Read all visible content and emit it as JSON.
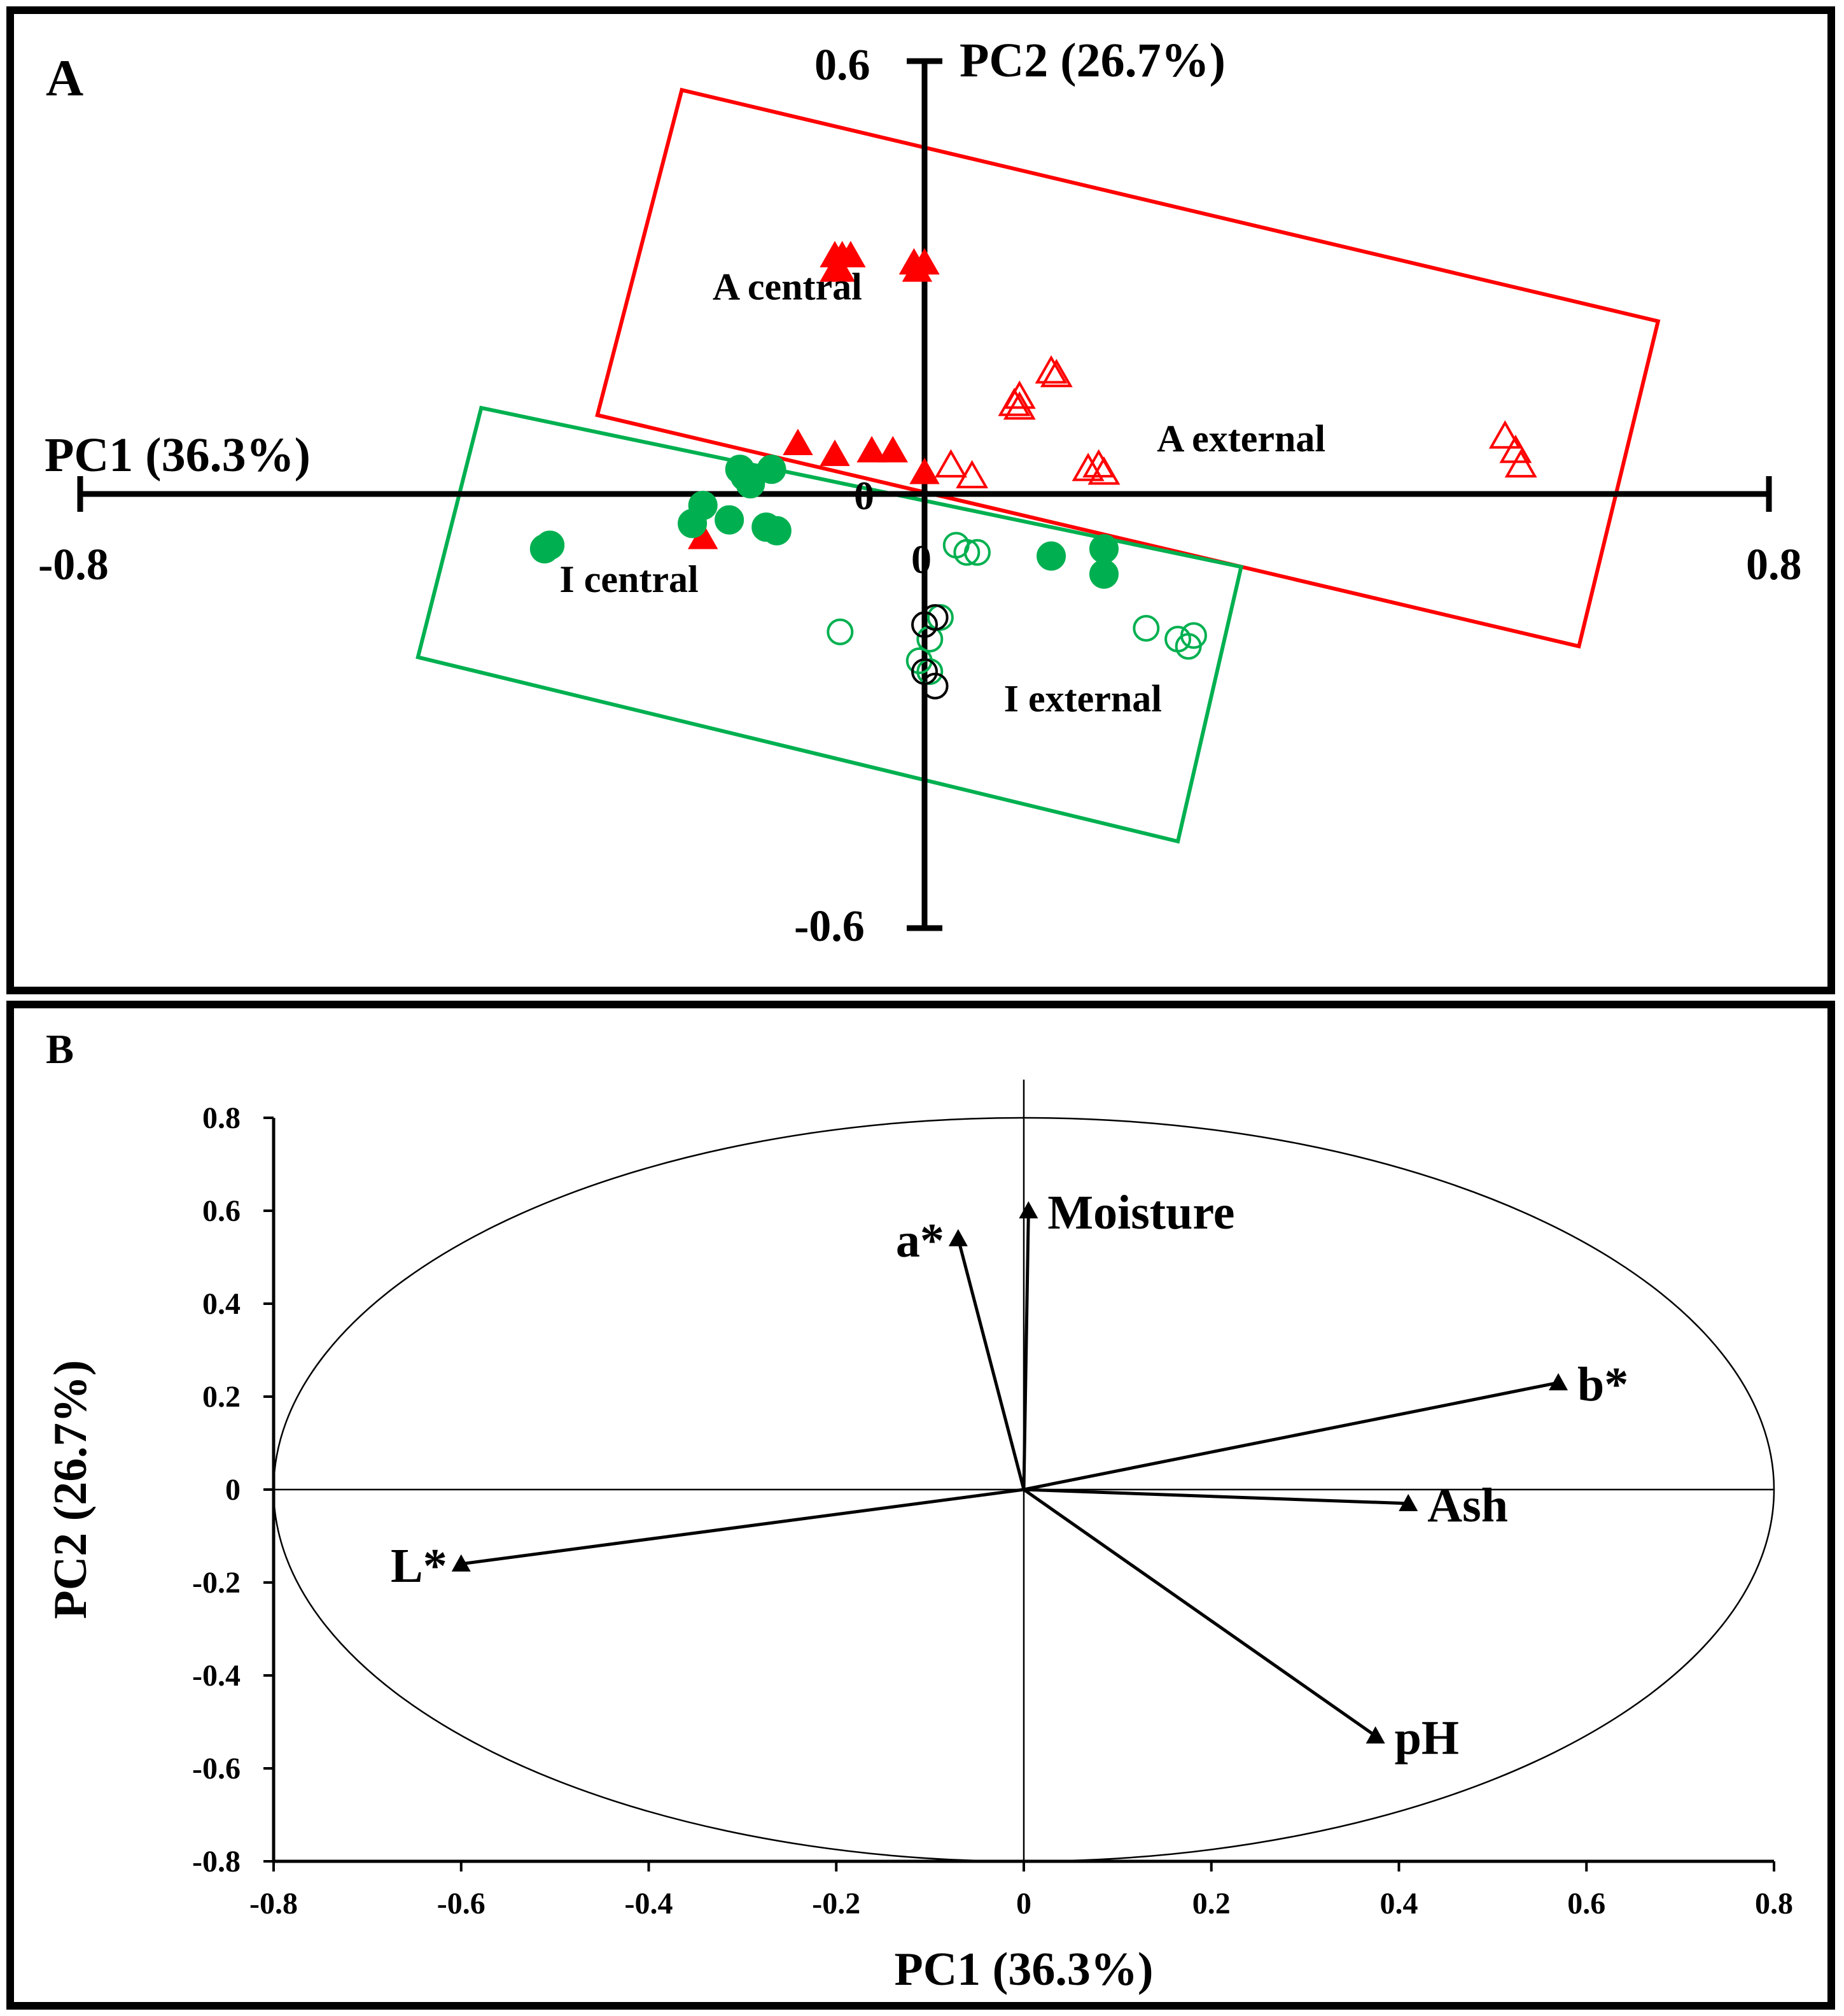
{
  "chart_data": [
    {
      "type": "scatter",
      "panel_label": "A",
      "xlabel": "PC1 (36.3%)",
      "ylabel": "PC2 (26.7%)",
      "xlim": [
        -0.8,
        0.8
      ],
      "ylim": [
        -0.6,
        0.6
      ],
      "x_tick_labels": [
        "-0.8",
        "0",
        "0.8"
      ],
      "y_tick_labels": [
        "0.6",
        "0",
        "-0.6"
      ],
      "series": [
        {
          "name": "A central",
          "marker": "triangle-filled",
          "color": "#ff0000",
          "points": [
            [
              -0.085,
              0.33
            ],
            [
              -0.078,
              0.33
            ],
            [
              -0.07,
              0.33
            ],
            [
              -0.085,
              0.31
            ],
            [
              -0.08,
              0.31
            ],
            [
              -0.01,
              0.32
            ],
            [
              0,
              0.32
            ],
            [
              -0.007,
              0.31
            ],
            [
              -0.12,
              0.07
            ],
            [
              -0.085,
              0.055
            ],
            [
              -0.05,
              0.06
            ],
            [
              -0.03,
              0.06
            ],
            [
              0,
              0.03
            ],
            [
              -0.21,
              -0.06
            ]
          ]
        },
        {
          "name": "A external",
          "marker": "triangle-open",
          "color": "#ff0000",
          "points": [
            [
              0.12,
              0.17
            ],
            [
              0.125,
              0.165
            ],
            [
              0.09,
              0.135
            ],
            [
              0.085,
              0.125
            ],
            [
              0.09,
              0.12
            ],
            [
              0.025,
              0.04
            ],
            [
              0.045,
              0.025
            ],
            [
              0.155,
              0.035
            ],
            [
              0.165,
              0.04
            ],
            [
              0.17,
              0.03
            ],
            [
              0.55,
              0.08
            ],
            [
              0.56,
              0.06
            ],
            [
              0.565,
              0.04
            ]
          ]
        },
        {
          "name": "I central",
          "marker": "circle-filled",
          "color": "#00b050",
          "points": [
            [
              -0.355,
              -0.07
            ],
            [
              -0.36,
              -0.075
            ],
            [
              -0.175,
              0.035
            ],
            [
              -0.17,
              0.025
            ],
            [
              -0.145,
              0.035
            ],
            [
              -0.165,
              0.015
            ],
            [
              -0.21,
              -0.015
            ],
            [
              -0.22,
              -0.04
            ],
            [
              -0.185,
              -0.035
            ],
            [
              -0.15,
              -0.045
            ],
            [
              -0.14,
              -0.05
            ],
            [
              0.12,
              -0.085
            ],
            [
              0.17,
              -0.075
            ],
            [
              0.17,
              -0.11
            ]
          ]
        },
        {
          "name": "I external",
          "marker": "circle-open",
          "color": "#00b050",
          "points": [
            [
              0.03,
              -0.07
            ],
            [
              0.04,
              -0.08
            ],
            [
              0.05,
              -0.08
            ],
            [
              -0.08,
              -0.19
            ],
            [
              0.015,
              -0.17
            ],
            [
              0.005,
              -0.2
            ],
            [
              -0.005,
              -0.23
            ],
            [
              0.005,
              -0.245
            ],
            [
              0.21,
              -0.185
            ],
            [
              0.24,
              -0.2
            ],
            [
              0.255,
              -0.195
            ],
            [
              0.25,
              -0.21
            ]
          ]
        },
        {
          "name": "",
          "marker": "circle-open",
          "color": "#000000",
          "points": [
            [
              0,
              -0.18
            ],
            [
              0.01,
              -0.17
            ],
            [
              0,
              -0.245
            ],
            [
              0.01,
              -0.265
            ]
          ]
        }
      ],
      "groups": [
        {
          "name": "A",
          "color": "#ff0000",
          "corners": [
            [
              -0.23,
              0.56
            ],
            [
              0.695,
              0.24
            ],
            [
              0.62,
              -0.21
            ],
            [
              -0.31,
              0.11
            ]
          ]
        },
        {
          "name": "I",
          "color": "#00b050",
          "corners": [
            [
              -0.42,
              0.12
            ],
            [
              0.3,
              -0.1
            ],
            [
              0.24,
              -0.48
            ],
            [
              -0.48,
              -0.225
            ]
          ]
        }
      ],
      "group_labels": [
        {
          "text": "A central",
          "x": -0.13,
          "y": 0.27
        },
        {
          "text": "A external",
          "x": 0.3,
          "y": 0.06
        },
        {
          "text": "I central",
          "x": -0.28,
          "y": -0.135
        },
        {
          "text": "I external",
          "x": 0.15,
          "y": -0.3
        }
      ]
    },
    {
      "type": "scatter",
      "subtype": "loadings-biplot",
      "panel_label": "B",
      "xlabel": "PC1 (36.3%)",
      "ylabel": "PC2 (26.7%)",
      "xlim": [
        -0.8,
        0.8
      ],
      "ylim": [
        -0.8,
        0.8
      ],
      "x_ticks": [
        -0.8,
        -0.6,
        -0.4,
        -0.2,
        0,
        0.2,
        0.4,
        0.6,
        0.8
      ],
      "x_tick_labels": [
        "-0.8",
        "-0.6",
        "-0.4",
        "-0.2",
        "0",
        "0.2",
        "0.4",
        "0.6",
        "0.8"
      ],
      "y_ticks": [
        0.8,
        0.6,
        0.4,
        0.2,
        0,
        -0.2,
        -0.4,
        -0.6,
        -0.8
      ],
      "y_tick_labels": [
        "0.8",
        "0.6",
        "0.4",
        "0.2",
        "0",
        "-0.2",
        "-0.4",
        "-0.6",
        "-0.8"
      ],
      "ellipse": {
        "rx": 0.8,
        "ry": 0.8
      },
      "loadings": [
        {
          "name": "Moisture",
          "x": 0.005,
          "y": 0.6,
          "label_pos": "right"
        },
        {
          "name": "a*",
          "x": -0.07,
          "y": 0.54,
          "label_pos": "left"
        },
        {
          "name": "b*",
          "x": 0.57,
          "y": 0.23,
          "label_pos": "right"
        },
        {
          "name": "Ash",
          "x": 0.41,
          "y": -0.03,
          "label_pos": "right"
        },
        {
          "name": "L*",
          "x": -0.6,
          "y": -0.16,
          "label_pos": "left"
        },
        {
          "name": "pH",
          "x": 0.375,
          "y": -0.53,
          "label_pos": "right"
        }
      ]
    }
  ]
}
